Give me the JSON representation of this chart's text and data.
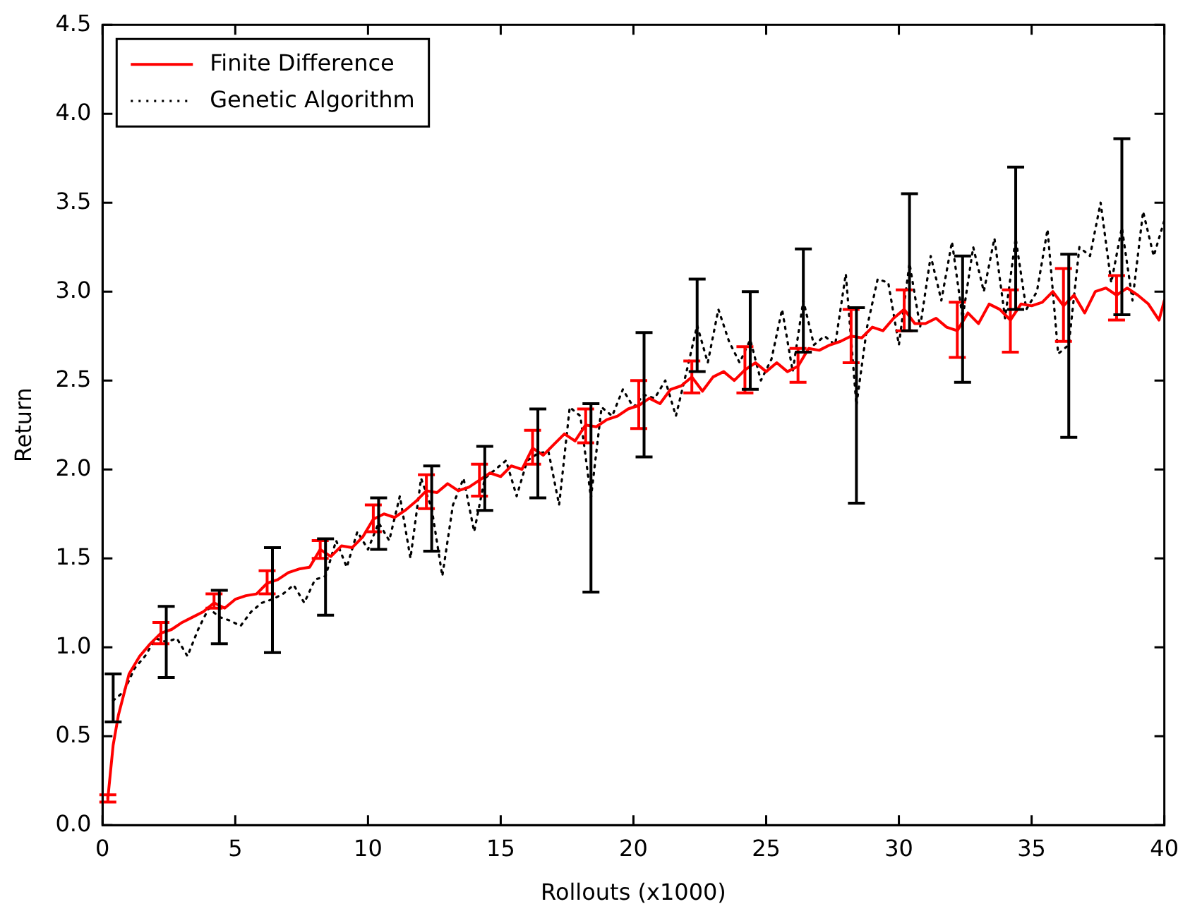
{
  "chart_data": {
    "type": "line",
    "xlabel": "Rollouts (x1000)",
    "ylabel": "Return",
    "xlim": [
      0,
      40
    ],
    "xticks": [
      0,
      5,
      10,
      15,
      20,
      25,
      30,
      35,
      40
    ],
    "ylim": [
      0,
      4.5
    ],
    "yticks": [
      {
        "value": 0,
        "label": "0.0"
      },
      {
        "value": 0.5,
        "label": "0.5"
      },
      {
        "value": 1,
        "label": "1.0"
      },
      {
        "value": 1.5,
        "label": "1.5"
      },
      {
        "value": 2,
        "label": "2.0"
      },
      {
        "value": 2.5,
        "label": "2.5"
      },
      {
        "value": 3,
        "label": "3.0"
      },
      {
        "value": 3.5,
        "label": "3.5"
      },
      {
        "value": 4,
        "label": "4.0"
      },
      {
        "value": 4.5,
        "label": "4.5"
      }
    ],
    "grid": false,
    "legend": "top left",
    "marker": "none",
    "series": [
      {
        "name": "Finite Difference",
        "color": "#ff0000",
        "line_style": "solid",
        "x": [
          0.2,
          0.4,
          0.6,
          1.0,
          1.4,
          1.8,
          2.2,
          2.6,
          3.0,
          3.4,
          3.8,
          4.2,
          4.6,
          5.0,
          5.4,
          5.8,
          6.2,
          6.6,
          7.0,
          7.4,
          7.8,
          8.2,
          8.6,
          9.0,
          9.4,
          9.8,
          10.2,
          10.6,
          11.0,
          11.4,
          11.8,
          12.2,
          12.6,
          13.0,
          13.4,
          13.8,
          14.2,
          14.6,
          15.0,
          15.4,
          15.8,
          16.2,
          16.6,
          17.0,
          17.4,
          17.8,
          18.2,
          18.6,
          19.0,
          19.4,
          19.8,
          20.2,
          20.6,
          21.0,
          21.4,
          21.8,
          22.2,
          22.6,
          23.0,
          23.4,
          23.8,
          24.2,
          24.6,
          25.0,
          25.4,
          25.8,
          26.2,
          26.6,
          27.0,
          27.4,
          27.8,
          28.2,
          28.6,
          29.0,
          29.4,
          29.8,
          30.2,
          30.6,
          31.0,
          31.4,
          31.8,
          32.2,
          32.6,
          33.0,
          33.4,
          33.8,
          34.2,
          34.6,
          35.0,
          35.4,
          35.8,
          36.2,
          36.6,
          37.0,
          37.4,
          37.8,
          38.2,
          38.6,
          39.0,
          39.4,
          39.8,
          40.0
        ],
        "values": [
          0.15,
          0.45,
          0.62,
          0.85,
          0.95,
          1.02,
          1.08,
          1.1,
          1.14,
          1.17,
          1.2,
          1.25,
          1.22,
          1.27,
          1.29,
          1.3,
          1.36,
          1.38,
          1.42,
          1.44,
          1.45,
          1.55,
          1.51,
          1.57,
          1.56,
          1.62,
          1.72,
          1.75,
          1.73,
          1.77,
          1.82,
          1.88,
          1.87,
          1.92,
          1.88,
          1.9,
          1.94,
          1.98,
          1.96,
          2.02,
          2.0,
          2.12,
          2.08,
          2.14,
          2.2,
          2.16,
          2.25,
          2.24,
          2.28,
          2.3,
          2.34,
          2.36,
          2.4,
          2.37,
          2.45,
          2.47,
          2.52,
          2.44,
          2.52,
          2.55,
          2.5,
          2.56,
          2.6,
          2.55,
          2.6,
          2.55,
          2.58,
          2.68,
          2.67,
          2.7,
          2.72,
          2.75,
          2.74,
          2.8,
          2.78,
          2.85,
          2.9,
          2.82,
          2.82,
          2.85,
          2.8,
          2.78,
          2.88,
          2.82,
          2.93,
          2.9,
          2.84,
          2.93,
          2.92,
          2.94,
          3.0,
          2.92,
          2.98,
          2.88,
          3.0,
          3.02,
          2.98,
          3.02,
          2.98,
          2.93,
          2.84,
          2.95
        ],
        "errors": [
          [
            0.13,
            0.17
          ],
          null,
          null,
          null,
          null,
          null,
          [
            1.02,
            1.14
          ],
          null,
          null,
          null,
          null,
          [
            1.22,
            1.3
          ],
          null,
          null,
          null,
          null,
          [
            1.3,
            1.43
          ],
          null,
          null,
          null,
          null,
          [
            1.5,
            1.6
          ],
          null,
          null,
          null,
          null,
          [
            1.65,
            1.8
          ],
          null,
          null,
          null,
          null,
          [
            1.78,
            1.97
          ],
          null,
          null,
          null,
          null,
          [
            1.85,
            2.03
          ],
          null,
          null,
          null,
          null,
          [
            2.03,
            2.22
          ],
          null,
          null,
          null,
          null,
          [
            2.15,
            2.34
          ],
          null,
          null,
          null,
          null,
          [
            2.23,
            2.5
          ],
          null,
          null,
          null,
          null,
          [
            2.43,
            2.61
          ],
          null,
          null,
          null,
          null,
          [
            2.43,
            2.69
          ],
          null,
          null,
          null,
          null,
          [
            2.49,
            2.68
          ],
          null,
          null,
          null,
          null,
          [
            2.6,
            2.9
          ],
          null,
          null,
          null,
          null,
          [
            2.78,
            3.01
          ],
          null,
          null,
          null,
          null,
          [
            2.63,
            2.94
          ],
          null,
          null,
          null,
          null,
          [
            2.66,
            3.01
          ],
          null,
          null,
          null,
          null,
          [
            2.72,
            3.13
          ],
          null,
          null,
          null,
          null,
          [
            2.84,
            3.09
          ],
          null,
          null,
          null,
          null,
          null
        ]
      },
      {
        "name": "Genetic Algorithm",
        "color": "#000000",
        "line_style": "dotted",
        "x": [
          0.4,
          0.8,
          1.2,
          1.6,
          2.0,
          2.4,
          2.8,
          3.2,
          3.6,
          4.0,
          4.4,
          4.8,
          5.2,
          5.6,
          6.0,
          6.4,
          6.8,
          7.2,
          7.6,
          8.0,
          8.4,
          8.8,
          9.2,
          9.6,
          10.0,
          10.4,
          10.8,
          11.2,
          11.6,
          12.0,
          12.4,
          12.8,
          13.2,
          13.6,
          14.0,
          14.4,
          14.8,
          15.2,
          15.6,
          16.0,
          16.4,
          16.8,
          17.2,
          17.6,
          18.0,
          18.4,
          18.8,
          19.2,
          19.6,
          20.0,
          20.4,
          20.8,
          21.2,
          21.6,
          22.0,
          22.4,
          22.8,
          23.2,
          23.6,
          24.0,
          24.4,
          24.8,
          25.2,
          25.6,
          26.0,
          26.4,
          26.8,
          27.2,
          27.6,
          28.0,
          28.4,
          28.8,
          29.2,
          29.6,
          30.0,
          30.4,
          30.8,
          31.2,
          31.6,
          32.0,
          32.4,
          32.8,
          33.2,
          33.6,
          34.0,
          34.4,
          34.8,
          35.2,
          35.6,
          36.0,
          36.4,
          36.8,
          37.2,
          37.6,
          38.0,
          38.4,
          38.8,
          39.2,
          39.6,
          40.0
        ],
        "values": [
          0.7,
          0.75,
          0.88,
          0.95,
          1.05,
          1.03,
          1.05,
          0.95,
          1.1,
          1.22,
          1.17,
          1.15,
          1.12,
          1.2,
          1.25,
          1.27,
          1.3,
          1.35,
          1.25,
          1.38,
          1.4,
          1.6,
          1.45,
          1.65,
          1.55,
          1.7,
          1.6,
          1.85,
          1.5,
          1.95,
          1.78,
          1.4,
          1.8,
          1.95,
          1.65,
          1.95,
          2.0,
          2.05,
          1.85,
          2.05,
          2.09,
          2.1,
          1.8,
          2.35,
          2.3,
          1.84,
          2.35,
          2.3,
          2.45,
          2.35,
          2.42,
          2.4,
          2.5,
          2.3,
          2.55,
          2.81,
          2.6,
          2.9,
          2.72,
          2.6,
          2.73,
          2.5,
          2.62,
          2.9,
          2.55,
          2.95,
          2.7,
          2.75,
          2.7,
          3.1,
          2.36,
          2.8,
          3.07,
          3.05,
          2.7,
          3.16,
          2.8,
          3.2,
          2.95,
          3.28,
          2.85,
          3.25,
          3.0,
          3.3,
          2.85,
          3.3,
          2.9,
          3.0,
          3.35,
          2.65,
          2.7,
          3.25,
          3.2,
          3.5,
          3.05,
          3.36,
          2.95,
          3.45,
          3.2,
          3.4
        ],
        "errors": [
          [
            0.58,
            0.85
          ],
          null,
          null,
          null,
          null,
          [
            0.83,
            1.23
          ],
          null,
          null,
          null,
          null,
          [
            1.02,
            1.32
          ],
          null,
          null,
          null,
          null,
          [
            0.97,
            1.56
          ],
          null,
          null,
          null,
          null,
          [
            1.18,
            1.61
          ],
          null,
          null,
          null,
          null,
          [
            1.55,
            1.84
          ],
          null,
          null,
          null,
          null,
          [
            1.54,
            2.02
          ],
          null,
          null,
          null,
          null,
          [
            1.77,
            2.13
          ],
          null,
          null,
          null,
          null,
          [
            1.84,
            2.34
          ],
          null,
          null,
          null,
          null,
          [
            1.31,
            2.37
          ],
          null,
          null,
          null,
          null,
          [
            2.07,
            2.77
          ],
          null,
          null,
          null,
          null,
          [
            2.55,
            3.07
          ],
          null,
          null,
          null,
          null,
          [
            2.45,
            3.0
          ],
          null,
          null,
          null,
          null,
          [
            2.66,
            3.24
          ],
          null,
          null,
          null,
          null,
          [
            1.81,
            2.91
          ],
          null,
          null,
          null,
          null,
          [
            2.78,
            3.55
          ],
          null,
          null,
          null,
          null,
          [
            2.49,
            3.2
          ],
          null,
          null,
          null,
          null,
          [
            2.9,
            3.7
          ],
          null,
          null,
          null,
          null,
          [
            2.18,
            3.21
          ],
          null,
          null,
          null,
          null,
          [
            2.87,
            3.86
          ],
          null,
          null,
          null,
          null
        ]
      }
    ]
  }
}
